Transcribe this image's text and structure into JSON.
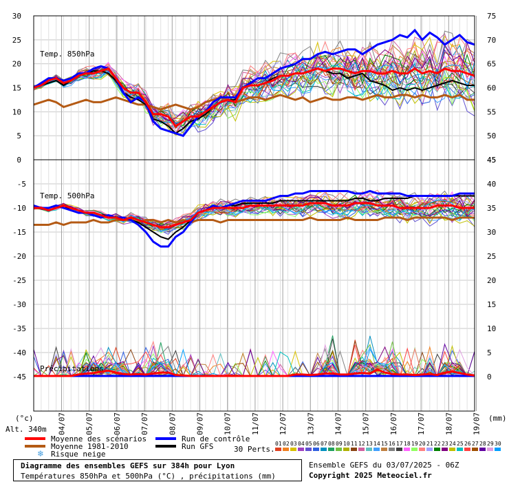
{
  "chart_data": [
    {
      "type": "line",
      "panel": "temp850",
      "title": "Temp. 850hPa",
      "left_axis": {
        "ylim": [
          0,
          30
        ],
        "ticks": [
          0,
          5,
          10,
          15,
          20,
          25,
          30
        ]
      },
      "right_axis": {
        "ylim": [
          45,
          75
        ],
        "ticks": [
          45,
          50,
          55,
          60,
          65,
          70,
          75
        ]
      },
      "x_step_hours": 6,
      "x_start_day": "03/07",
      "series": [
        {
          "role": "mean",
          "name": "Moyenne des scénarios",
          "color": "#ff0000",
          "values": [
            15,
            15.5,
            16.5,
            17,
            16,
            16.5,
            17.5,
            18,
            18,
            18.5,
            19,
            17,
            15,
            14,
            14,
            12,
            9.5,
            9.5,
            9,
            7,
            8,
            9,
            9,
            10,
            11,
            12,
            12.5,
            12,
            15,
            15.5,
            15.5,
            16,
            16.5,
            17.5,
            17.5,
            18,
            18,
            18.5,
            19,
            18.5,
            19,
            19,
            18.5,
            18,
            18.5,
            18.5,
            18,
            18,
            18.5,
            18,
            18,
            19,
            18,
            18.5,
            18,
            19,
            18.5,
            18.5,
            18,
            17.5
          ]
        },
        {
          "role": "clim",
          "name": "Moyenne 1981-2010",
          "color": "#b45a14",
          "values": [
            11.5,
            12,
            12.5,
            12,
            11,
            11.5,
            12,
            12.5,
            12,
            12,
            12.5,
            13,
            12.5,
            12,
            11.5,
            11.5,
            11,
            10.5,
            11,
            11.5,
            11,
            10.5,
            11,
            12,
            12.5,
            13,
            12.5,
            12,
            12.5,
            13,
            13,
            12.5,
            13,
            13.5,
            13,
            12.5,
            13,
            12,
            12.5,
            13,
            12.5,
            12.5,
            13,
            13,
            12.5,
            13,
            13.5,
            13,
            13,
            13.5,
            13.5,
            13,
            13.5,
            13,
            13,
            13.5,
            13,
            13.5,
            12.5,
            12.5
          ]
        },
        {
          "role": "control",
          "name": "Run de contrôle",
          "color": "#0000ff",
          "values": [
            15,
            16,
            17,
            17,
            16.5,
            17,
            18,
            18,
            19,
            19.5,
            19,
            17,
            14,
            12,
            13,
            12,
            8,
            6.5,
            6,
            5.5,
            5,
            7,
            9,
            10,
            12,
            13,
            13,
            13,
            15,
            16,
            17,
            17,
            18,
            19,
            19.5,
            20,
            21,
            21,
            22,
            22.5,
            22,
            22.5,
            23,
            23,
            22,
            23,
            24,
            24.5,
            25,
            26,
            25.5,
            27,
            25,
            26.5,
            25.5,
            24,
            25,
            26,
            24.5,
            24
          ]
        },
        {
          "role": "gfs",
          "name": "Run GFS",
          "color": "#000000",
          "values": [
            15,
            15.5,
            16,
            16.5,
            15.5,
            16.5,
            17.5,
            18,
            18.5,
            18.5,
            18,
            16.5,
            14,
            13,
            12.5,
            11.5,
            8.5,
            8,
            7,
            5.5,
            6.5,
            8,
            8.5,
            9.5,
            11,
            12,
            12.5,
            12.5,
            15,
            15.5,
            15.5,
            16,
            17,
            17.5,
            17.5,
            18,
            18,
            18.5,
            19,
            18.5,
            18,
            18,
            17,
            17.5,
            18,
            16.5,
            16,
            15.5,
            14.5,
            15,
            14.5,
            15,
            14.5,
            15,
            15.5,
            16,
            16.5,
            16,
            15.5,
            15.5
          ]
        }
      ]
    },
    {
      "type": "line",
      "panel": "temp500",
      "title": "Temp. 500hPa",
      "left_axis": {
        "ylim": [
          -20,
          0
        ],
        "ticks": [
          -5,
          -10,
          -15,
          -20
        ]
      },
      "right_axis": {
        "ylim": [
          25,
          45
        ],
        "ticks": [
          25,
          30,
          35,
          40,
          45
        ]
      },
      "series": [
        {
          "role": "mean",
          "name": "Moyenne des scénarios",
          "color": "#ff0000",
          "values": [
            -10,
            -10,
            -10.5,
            -10,
            -9.5,
            -10,
            -10.5,
            -11,
            -11,
            -11.5,
            -12,
            -12,
            -12.5,
            -12,
            -12.5,
            -13,
            -13.5,
            -14,
            -14,
            -13.5,
            -13,
            -12.5,
            -11,
            -10.5,
            -10,
            -10,
            -10,
            -10,
            -10,
            -9.5,
            -9.5,
            -9.5,
            -9.5,
            -9.5,
            -9.5,
            -9.5,
            -9.5,
            -9,
            -9,
            -9,
            -9.5,
            -9.5,
            -9.5,
            -9,
            -9,
            -9,
            -9.5,
            -9.5,
            -9.5,
            -10,
            -10,
            -10,
            -10,
            -10,
            -9.5,
            -9.5,
            -9.5,
            -10,
            -10,
            -10
          ]
        },
        {
          "role": "clim",
          "name": "Moyenne 1981-2010",
          "color": "#b45a14",
          "values": [
            -13.5,
            -13.5,
            -13.5,
            -13,
            -13.5,
            -13,
            -13,
            -13,
            -12.5,
            -13,
            -13,
            -12.5,
            -12.5,
            -12.5,
            -13,
            -12.5,
            -12.5,
            -13,
            -12.5,
            -13,
            -12.5,
            -13,
            -12.5,
            -12.5,
            -12.5,
            -13,
            -12.5,
            -12.5,
            -12.5,
            -12.5,
            -12.5,
            -12.5,
            -12.5,
            -12.5,
            -12.5,
            -12.5,
            -12.5,
            -12,
            -12.5,
            -12.5,
            -12.5,
            -12.5,
            -12,
            -12.5,
            -12.5,
            -12.5,
            -12.5,
            -12,
            -12,
            -12,
            -12.5,
            -12,
            -12,
            -12,
            -12,
            -12,
            -12.5,
            -12,
            -12,
            -12
          ]
        },
        {
          "role": "control",
          "name": "Run de contrôle",
          "color": "#0000ff",
          "values": [
            -9.5,
            -10,
            -10,
            -9.5,
            -10,
            -10.5,
            -11,
            -11,
            -11.5,
            -12,
            -11.5,
            -12,
            -12,
            -12.5,
            -13.5,
            -15,
            -17,
            -18,
            -18,
            -16,
            -15,
            -13,
            -11,
            -10.5,
            -9.5,
            -10,
            -9.5,
            -9,
            -8.5,
            -8.5,
            -8.5,
            -8.5,
            -8,
            -7.5,
            -7.5,
            -7,
            -7,
            -6.5,
            -6.5,
            -6.5,
            -6.5,
            -6.5,
            -6.5,
            -7,
            -7,
            -6.5,
            -7,
            -7,
            -7,
            -7,
            -7.5,
            -7.5,
            -7.5,
            -7.5,
            -7.5,
            -7.5,
            -7.5,
            -7,
            -7,
            -7
          ]
        },
        {
          "role": "gfs",
          "name": "Run GFS",
          "color": "#000000",
          "values": [
            -9.5,
            -10,
            -10,
            -9.5,
            -10,
            -10,
            -10.5,
            -11,
            -11,
            -11.5,
            -11.5,
            -12,
            -12,
            -12.5,
            -13,
            -14,
            -15,
            -16,
            -16.5,
            -15,
            -14,
            -12.5,
            -11,
            -10.5,
            -10,
            -10,
            -9.5,
            -9.5,
            -9,
            -9,
            -9,
            -9,
            -9,
            -8.5,
            -8.5,
            -8.5,
            -8.5,
            -8.5,
            -8.5,
            -8.5,
            -8.5,
            -8.5,
            -8.5,
            -8,
            -8,
            -8.5,
            -8.5,
            -8,
            -8,
            -8,
            -8,
            -7.5,
            -7.5,
            -7.5,
            -7.5,
            -7.5,
            -7.5,
            -7.5,
            -7.5,
            -7.5
          ]
        }
      ]
    },
    {
      "type": "line",
      "panel": "precip",
      "title": "Précipitations",
      "left_axis": {
        "ylim": [
          -45,
          -20
        ],
        "ticks": [
          -25,
          -30,
          -35,
          -40,
          -45
        ]
      },
      "right_axis": {
        "ylim": [
          0,
          25
        ],
        "unit": "(mm)",
        "ticks": [
          0,
          5,
          10,
          15,
          20
        ]
      },
      "series": [
        {
          "role": "mean",
          "name": "Moyenne des scénarios",
          "color": "#ff0000",
          "values": [
            0,
            0,
            0,
            0,
            0,
            0,
            0.3,
            0.5,
            0.6,
            0.9,
            1.1,
            0.7,
            0.4,
            0.3,
            0.4,
            0.3,
            0.5,
            0.7,
            0.7,
            0.2,
            0.1,
            0,
            0,
            0,
            0,
            0,
            0,
            0,
            0,
            0,
            0,
            0,
            0,
            0,
            0,
            0.3,
            0.3,
            0.2,
            0.3,
            0.5,
            0.5,
            0.3,
            0.3,
            0.5,
            0.6,
            0.5,
            1.3,
            0.7,
            0.4,
            0.3,
            0.3,
            0.2,
            0.3,
            0.4,
            0.2,
            0.7,
            0.9,
            0.6,
            0.3,
            0.1
          ]
        },
        {
          "role": "control",
          "name": "Run de contrôle",
          "color": "#0000ff",
          "values": [
            0,
            0,
            0,
            0,
            0,
            0,
            0,
            0,
            0,
            0,
            0,
            0,
            0,
            0,
            0,
            0,
            0,
            0,
            0,
            0,
            0,
            0,
            0,
            0,
            0,
            0,
            0,
            0,
            0,
            0,
            0,
            0,
            0,
            0,
            0,
            0,
            0,
            0,
            0,
            0,
            0,
            0,
            0,
            0,
            0,
            0,
            0,
            0,
            0,
            0,
            0,
            0,
            0,
            0,
            0,
            0,
            0,
            0,
            0,
            0
          ]
        },
        {
          "role": "gfs",
          "name": "Run GFS",
          "color": "#000000",
          "values": [
            0,
            0,
            0,
            0,
            0,
            0,
            0,
            0,
            0,
            0,
            0,
            0,
            0,
            0,
            0,
            0,
            0,
            0,
            0,
            0,
            0,
            0,
            0,
            0,
            0,
            0,
            0,
            0,
            0,
            0,
            0,
            0,
            0,
            0,
            0,
            0,
            0,
            0,
            0,
            0,
            0,
            0,
            0,
            0,
            0,
            0,
            0,
            0,
            0,
            0,
            0,
            0,
            0,
            0,
            0,
            0,
            0,
            0,
            0,
            0
          ]
        }
      ]
    }
  ],
  "x_tick_labels": [
    "04/07",
    "05/07",
    "06/07",
    "07/07",
    "08/07",
    "09/07",
    "10/07",
    "11/07",
    "12/07",
    "13/07",
    "14/07",
    "15/07",
    "16/07",
    "17/07",
    "18/07",
    "19/07"
  ],
  "left_unit": "(°c)",
  "right_unit": "(mm)",
  "altitude": "Alt. 340m",
  "legend": {
    "mean": "Moyenne des scénarios",
    "clim": "Moyenne 1981-2010",
    "snow": "Risque neige",
    "control": "Run de contrôle",
    "gfs": "Run GFS",
    "perts_label": "30 Perts.",
    "pert_numbers": [
      "01",
      "02",
      "03",
      "04",
      "05",
      "06",
      "07",
      "08",
      "09",
      "10",
      "11",
      "12",
      "13",
      "14",
      "15",
      "16",
      "17",
      "18",
      "19",
      "20",
      "21",
      "22",
      "23",
      "24",
      "25",
      "26",
      "27",
      "28",
      "29",
      "30"
    ]
  },
  "perturbation_colors": [
    "#e04020",
    "#f08020",
    "#d8c000",
    "#a040c0",
    "#6050d0",
    "#3060e0",
    "#0090c0",
    "#20a060",
    "#70c040",
    "#b0b000",
    "#8b4513",
    "#d060a0",
    "#60c0c0",
    "#40a0ff",
    "#c08040",
    "#808080",
    "#404040",
    "#ff60ff",
    "#90ff60",
    "#ff8080",
    "#a0a0ff",
    "#008000",
    "#800080",
    "#c0c000",
    "#00c0c0",
    "#ff4040",
    "#a05000",
    "#6000a0",
    "#e0a0e0",
    "#00a0ff"
  ],
  "title_line1": "Diagramme des ensembles GEFS sur 384h pour Lyon",
  "title_line2": "Températures 850hPa et 500hPa (°C) , précipitations (mm)",
  "run_info": "Ensemble GEFS du 03/07/2025 - 06Z",
  "copyright": "Copyright 2025 Meteociel.fr"
}
